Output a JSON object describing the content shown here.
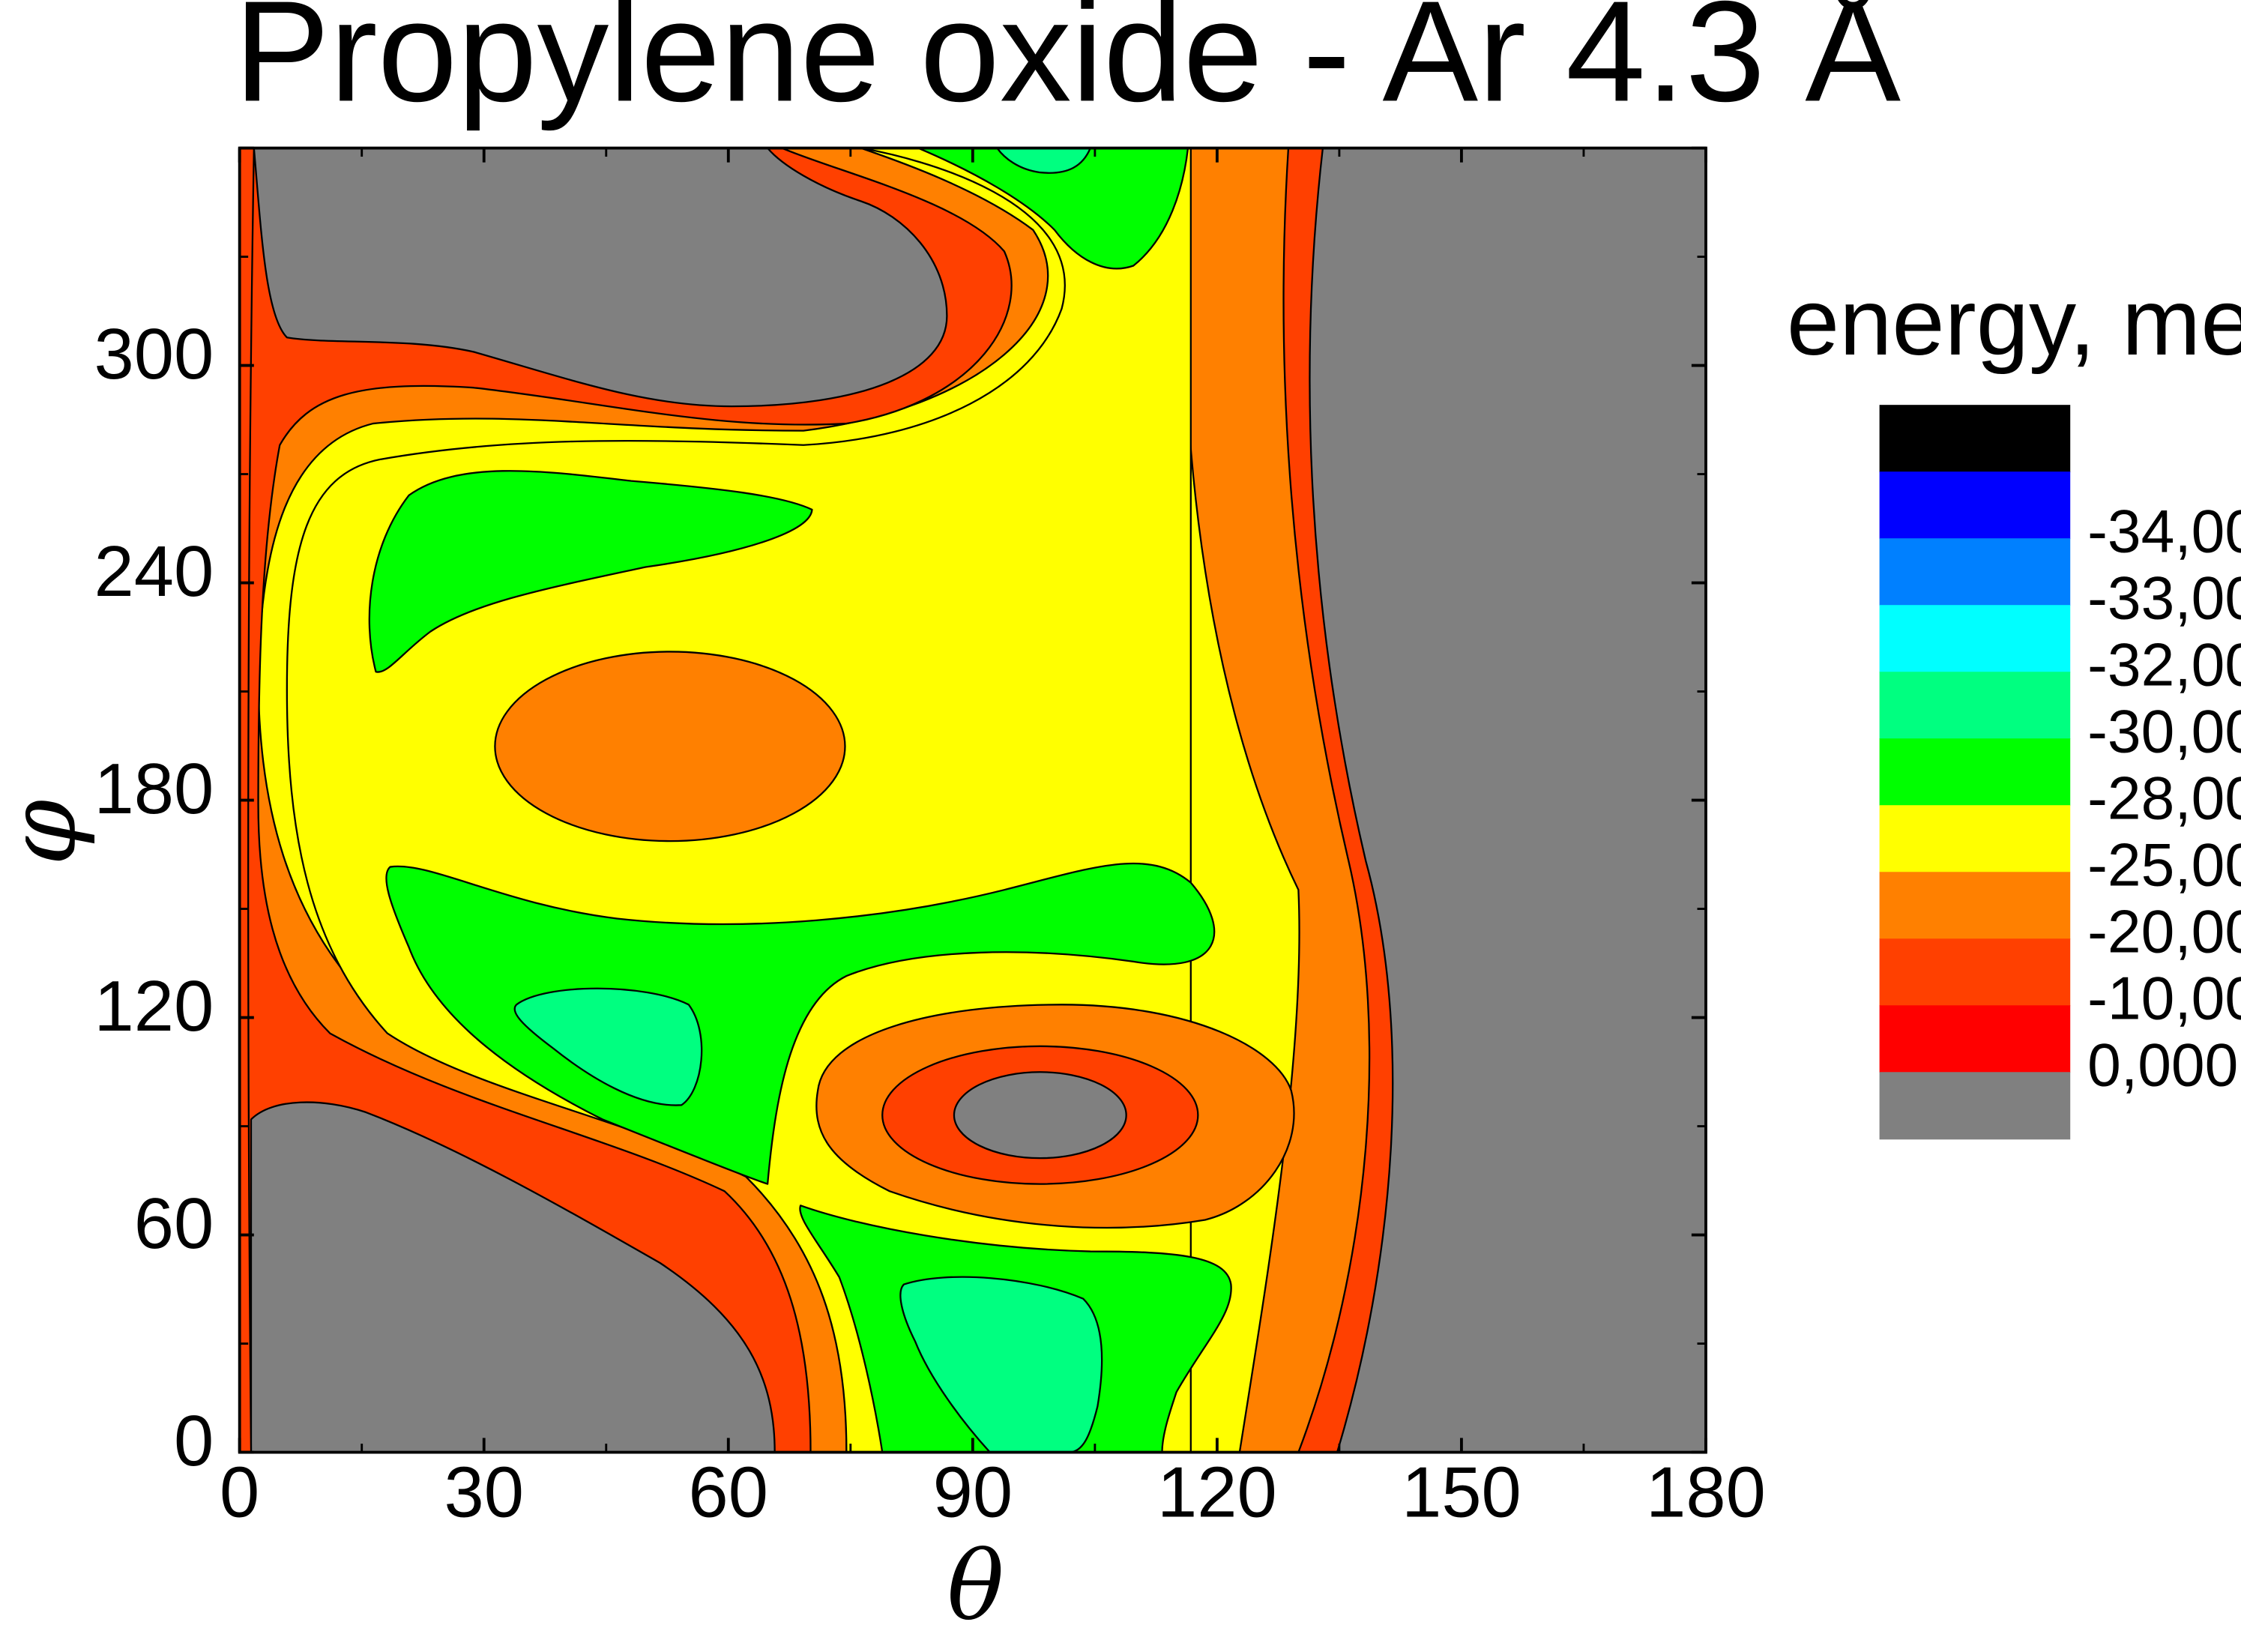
{
  "chart_data": {
    "type": "heatmap",
    "title": "Propylene oxide - Ar 4.3 Å",
    "xlabel": "θ",
    "ylabel": "φ",
    "xlim": [
      0,
      180
    ],
    "ylim": [
      0,
      360
    ],
    "xticks": [
      "0",
      "30",
      "60",
      "90",
      "120",
      "150",
      "180"
    ],
    "yticks": [
      "0",
      "60",
      "120",
      "180",
      "240",
      "300"
    ],
    "legend": {
      "title": "energy, meV",
      "position": "right",
      "bands": [
        {
          "label": "",
          "color": "#000000"
        },
        {
          "label": "-34,00",
          "color": "#0000ff"
        },
        {
          "label": "-33,00",
          "color": "#0080ff"
        },
        {
          "label": "-32,00",
          "color": "#00ffff"
        },
        {
          "label": "-30,00",
          "color": "#00ff80"
        },
        {
          "label": "-28,00",
          "color": "#00ff00"
        },
        {
          "label": "-25,00",
          "color": "#ffff00"
        },
        {
          "label": "-20,00",
          "color": "#ff8000"
        },
        {
          "label": "-10,00",
          "color": "#ff4000"
        },
        {
          "label": "0,000",
          "color": "#ff0000"
        },
        {
          "label": "",
          "color": "#808080"
        }
      ]
    },
    "regions": {
      "repulsive": "#808080",
      "band_0_to_-10": "#ff4000",
      "band_-10_to_-20": "#ff8000",
      "band_-20_to_-25": "#ffff00",
      "band_-25_to_-28": "#00ff00",
      "band_-28_to_-30": "#00ff80",
      "band_-30_to_-32": "#00ffff"
    },
    "grid": false
  }
}
